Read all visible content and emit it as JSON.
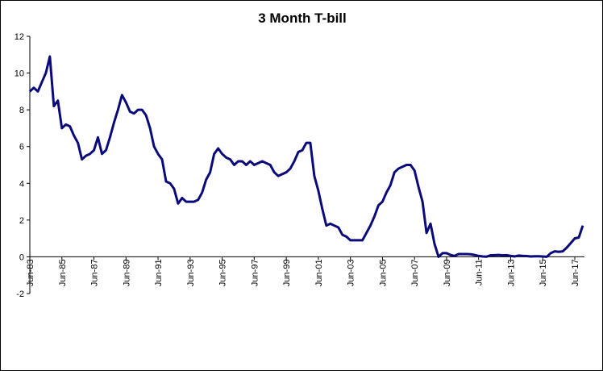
{
  "chart_data": {
    "type": "line",
    "title": "3 Month T-bill",
    "categories": [
      "Jun-83",
      null,
      null,
      null,
      null,
      null,
      null,
      null,
      "Jun-85",
      null,
      null,
      null,
      null,
      null,
      null,
      null,
      "Jun-87",
      null,
      null,
      null,
      null,
      null,
      null,
      null,
      "Jun-89",
      null,
      null,
      null,
      null,
      null,
      null,
      null,
      "Jun-91",
      null,
      null,
      null,
      null,
      null,
      null,
      null,
      "Jun-93",
      null,
      null,
      null,
      null,
      null,
      null,
      null,
      "Jun-95",
      null,
      null,
      null,
      null,
      null,
      null,
      null,
      "Jun-97",
      null,
      null,
      null,
      null,
      null,
      null,
      null,
      "Jun-99",
      null,
      null,
      null,
      null,
      null,
      null,
      null,
      "Jun-01",
      null,
      null,
      null,
      null,
      null,
      null,
      null,
      "Jun-03",
      null,
      null,
      null,
      null,
      null,
      null,
      null,
      "Jun-05",
      null,
      null,
      null,
      null,
      null,
      null,
      null,
      "Jun-07",
      null,
      null,
      null,
      null,
      null,
      null,
      null,
      "Jun-09",
      null,
      null,
      null,
      null,
      null,
      null,
      null,
      "Jun-11",
      null,
      null,
      null,
      null,
      null,
      null,
      null,
      "Jun-13",
      null,
      null,
      null,
      null,
      null,
      null,
      null,
      "Jun-15",
      null,
      null,
      null,
      null,
      null,
      null,
      null,
      "Jun-17",
      null,
      null
    ],
    "series": [
      {
        "name": "3 Month T-bill",
        "color": "#0a0a7a",
        "values": [
          9.0,
          9.2,
          9.0,
          9.5,
          10.0,
          10.9,
          8.2,
          8.5,
          7.0,
          7.2,
          7.1,
          6.6,
          6.2,
          5.3,
          5.5,
          5.6,
          5.8,
          6.5,
          5.6,
          5.8,
          6.5,
          7.3,
          8.0,
          8.8,
          8.4,
          7.9,
          7.8,
          8.0,
          8.0,
          7.7,
          7.0,
          6.0,
          5.6,
          5.3,
          4.1,
          4.0,
          3.7,
          2.9,
          3.2,
          3.0,
          3.0,
          3.0,
          3.1,
          3.5,
          4.2,
          4.6,
          5.6,
          5.9,
          5.6,
          5.4,
          5.3,
          5.0,
          5.2,
          5.2,
          5.0,
          5.2,
          5.0,
          5.1,
          5.2,
          5.1,
          5.0,
          4.6,
          4.4,
          4.5,
          4.6,
          4.8,
          5.2,
          5.7,
          5.8,
          6.2,
          6.2,
          4.4,
          3.6,
          2.6,
          1.7,
          1.8,
          1.7,
          1.6,
          1.2,
          1.1,
          0.9,
          0.9,
          0.9,
          0.9,
          1.3,
          1.7,
          2.2,
          2.8,
          3.0,
          3.5,
          3.9,
          4.6,
          4.8,
          4.9,
          5.0,
          5.0,
          4.7,
          3.8,
          3.0,
          1.3,
          1.8,
          0.7,
          0.0,
          0.2,
          0.2,
          0.1,
          0.05,
          0.15,
          0.15,
          0.15,
          0.14,
          0.1,
          0.05,
          0.02,
          0.01,
          0.08,
          0.09,
          0.1,
          0.08,
          0.09,
          0.05,
          0.02,
          0.07,
          0.05,
          0.04,
          0.02,
          0.03,
          0.03,
          0.02,
          0.0,
          0.2,
          0.3,
          0.27,
          0.3,
          0.5,
          0.75,
          1.0,
          1.05,
          1.7
        ]
      }
    ],
    "ylim": [
      -2,
      12
    ],
    "yticks": [
      -2,
      0,
      2,
      4,
      6,
      8,
      10,
      12
    ]
  }
}
